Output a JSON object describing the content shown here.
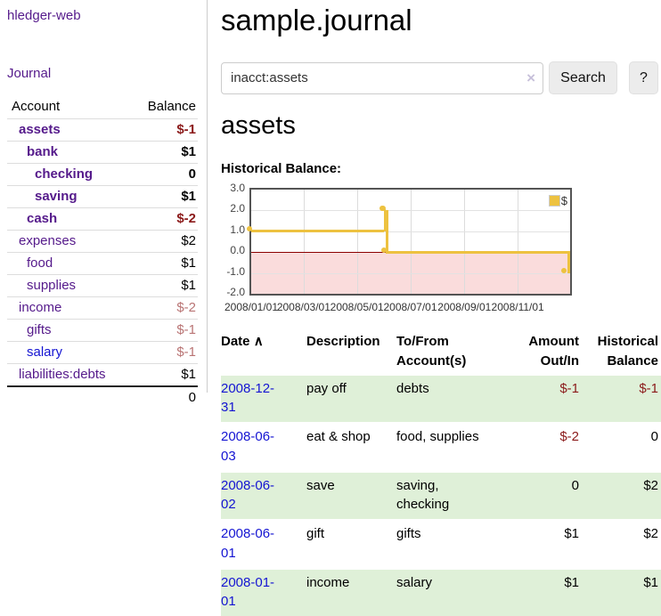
{
  "sidebar": {
    "brand": "hledger-web",
    "journal_label": "Journal",
    "accounts_table": {
      "headers": {
        "account": "Account",
        "balance": "Balance"
      },
      "rows": [
        {
          "name": "assets",
          "indent": 1,
          "bold": true,
          "link": "purple",
          "balance": "$-1",
          "balance_style": "neg"
        },
        {
          "name": "bank",
          "indent": 2,
          "bold": true,
          "link": "purple",
          "balance": "$1",
          "balance_style": ""
        },
        {
          "name": "checking",
          "indent": 3,
          "bold": true,
          "link": "purple",
          "balance": "0",
          "balance_style": ""
        },
        {
          "name": "saving",
          "indent": 3,
          "bold": true,
          "link": "purple",
          "balance": "$1",
          "balance_style": ""
        },
        {
          "name": "cash",
          "indent": 2,
          "bold": true,
          "link": "purple",
          "balance": "$-2",
          "balance_style": "neg"
        },
        {
          "name": "expenses",
          "indent": 1,
          "bold": false,
          "link": "purple",
          "balance": "$2",
          "balance_style": ""
        },
        {
          "name": "food",
          "indent": 2,
          "bold": false,
          "link": "purple",
          "balance": "$1",
          "balance_style": ""
        },
        {
          "name": "supplies",
          "indent": 2,
          "bold": false,
          "link": "purple",
          "balance": "$1",
          "balance_style": ""
        },
        {
          "name": "income",
          "indent": 1,
          "bold": false,
          "link": "purple",
          "balance": "$-2",
          "balance_style": "negsoft"
        },
        {
          "name": "gifts",
          "indent": 2,
          "bold": false,
          "link": "purple",
          "balance": "$-1",
          "balance_style": "negsoft"
        },
        {
          "name": "salary",
          "indent": 2,
          "bold": false,
          "link": "blue",
          "balance": "$-1",
          "balance_style": "negsoft"
        },
        {
          "name": "liabilities:debts",
          "indent": 1,
          "bold": false,
          "link": "purple",
          "balance": "$1",
          "balance_style": ""
        }
      ],
      "total": "0"
    }
  },
  "header": {
    "title": "sample.journal"
  },
  "search": {
    "value": "inacct:assets",
    "clear_icon": "×",
    "button_label": "Search",
    "help_label": "?"
  },
  "account_view": {
    "title": "assets",
    "chart_label": "Historical Balance:"
  },
  "chart_data": {
    "type": "line",
    "style": "step",
    "title": "Historical Balance",
    "series": [
      {
        "name": "$",
        "color": "#edc240",
        "points": [
          {
            "date": "2008-01-01",
            "value": 1
          },
          {
            "date": "2008-06-01",
            "value": 2
          },
          {
            "date": "2008-06-02",
            "value": 2
          },
          {
            "date": "2008-06-03",
            "value": 0
          },
          {
            "date": "2008-12-31",
            "value": -1
          }
        ]
      }
    ],
    "ylim": [
      -2,
      3
    ],
    "yticks": [
      "3.0",
      "2.0",
      "1.0",
      "0.0",
      "-1.0",
      "-2.0"
    ],
    "xticks": [
      "2008/01/01",
      "2008/03/01",
      "2008/05/01",
      "2008/07/01",
      "2008/09/01",
      "2008/11/01"
    ],
    "x_start": "2008-01-01",
    "x_end": "2008-12-31",
    "grid": true,
    "legend": "$",
    "legend_position": "top-right",
    "negative_region_color": "#fadcdc",
    "zero_line_color": "#8b0000",
    "border_color": "#545454"
  },
  "register_table": {
    "headers": {
      "date": "Date",
      "sort_icon": "∧",
      "description": "Description",
      "accounts": "To/From Account(s)",
      "amount": "Amount Out/In",
      "balance": "Historical Balance"
    },
    "rows": [
      {
        "date": "2008-12-31",
        "description": "pay off",
        "accounts": "debts",
        "amount": "$-1",
        "amount_neg": true,
        "balance": "$-1",
        "balance_neg": true
      },
      {
        "date": "2008-06-03",
        "description": "eat & shop",
        "accounts": "food, supplies",
        "amount": "$-2",
        "amount_neg": true,
        "balance": "0",
        "balance_neg": false
      },
      {
        "date": "2008-06-02",
        "description": "save",
        "accounts": "saving, checking",
        "amount": "0",
        "amount_neg": false,
        "balance": "$2",
        "balance_neg": false
      },
      {
        "date": "2008-06-01",
        "description": "gift",
        "accounts": "gifts",
        "amount": "$1",
        "amount_neg": false,
        "balance": "$2",
        "balance_neg": false
      },
      {
        "date": "2008-01-01",
        "description": "income",
        "accounts": "salary",
        "amount": "$1",
        "amount_neg": false,
        "balance": "$1",
        "balance_neg": false
      }
    ]
  }
}
